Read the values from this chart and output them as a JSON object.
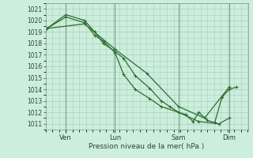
{
  "xlabel": "Pression niveau de la mer( hPa )",
  "background_color": "#cceedd",
  "grid_color": "#aaccbb",
  "line_color": "#2d6e2d",
  "ylim": [
    1010.5,
    1021.5
  ],
  "yticks": [
    1011,
    1012,
    1013,
    1014,
    1015,
    1016,
    1017,
    1018,
    1019,
    1020,
    1021
  ],
  "xlim": [
    0,
    7.0
  ],
  "day_labels": [
    "Ven",
    "Lun",
    "Sam",
    "Dim"
  ],
  "day_positions": [
    0.7,
    2.4,
    4.6,
    6.35
  ],
  "vline_positions": [
    0.7,
    2.4,
    4.6,
    6.35
  ],
  "series1_x": [
    0.05,
    0.7,
    1.35,
    1.7,
    2.0,
    2.4,
    2.7,
    3.1,
    3.6,
    4.0,
    4.6,
    5.3,
    6.0,
    6.35
  ],
  "series1_y": [
    1019.3,
    1020.3,
    1019.8,
    1018.7,
    1018.2,
    1017.2,
    1015.3,
    1014.0,
    1013.2,
    1012.5,
    1012.0,
    1011.2,
    1011.0,
    1011.5
  ],
  "series2_x": [
    0.05,
    0.7,
    1.35,
    1.7,
    2.0,
    2.4,
    2.7,
    3.1,
    3.6,
    4.0,
    4.3,
    4.6,
    4.85,
    5.1,
    5.3,
    5.6,
    5.85,
    6.1,
    6.35,
    6.6
  ],
  "series2_y": [
    1019.3,
    1020.5,
    1020.0,
    1019.0,
    1018.0,
    1017.3,
    1016.7,
    1015.2,
    1014.1,
    1013.0,
    1012.5,
    1012.0,
    1011.8,
    1011.2,
    1012.0,
    1011.3,
    1011.1,
    1013.3,
    1014.0,
    1014.2
  ],
  "series3_x": [
    0.05,
    1.35,
    2.4,
    3.5,
    4.6,
    5.5,
    6.35
  ],
  "series3_y": [
    1019.3,
    1019.7,
    1017.5,
    1015.4,
    1012.5,
    1011.5,
    1014.2
  ]
}
